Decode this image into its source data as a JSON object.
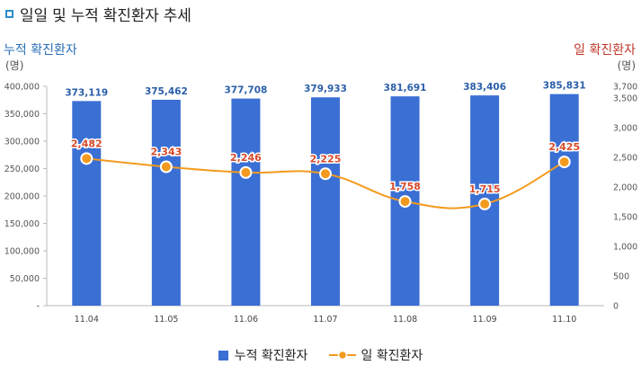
{
  "title": "일일 및 누적 확진환자 추세",
  "left_axis_title": "누적 확진환자",
  "left_axis_unit": "(명)",
  "right_axis_title": "일 확진환자",
  "right_axis_unit": "(명)",
  "colors": {
    "bar": "#3a6fd4",
    "bar_label": "#2a5fa8",
    "line": "#f39a1e",
    "line_label": "#d84a2a",
    "right_title": "#c0392b",
    "left_title": "#2a6fb5"
  },
  "chart_data": {
    "type": "bar",
    "title": "일일 및 누적 확진환자 추세",
    "categories": [
      "11.04",
      "11.05",
      "11.06",
      "11.07",
      "11.08",
      "11.09",
      "11.10"
    ],
    "series": [
      {
        "name": "누적 확진환자",
        "type": "bar",
        "axis": "left",
        "values": [
          373119,
          375462,
          377708,
          379933,
          381691,
          383406,
          385831
        ],
        "labels": [
          "373,119",
          "375,462",
          "377,708",
          "379,933",
          "381,691",
          "383,406",
          "385,831"
        ]
      },
      {
        "name": "일 확진환자",
        "type": "line",
        "axis": "right",
        "values": [
          2482,
          2343,
          2246,
          2225,
          1758,
          1715,
          2425
        ],
        "labels": [
          "2,482",
          "2,343",
          "2,246",
          "2,225",
          "1,758",
          "1,715",
          "2,425"
        ]
      }
    ],
    "left_axis": {
      "min": 0,
      "max": 400000,
      "ticks": [
        0,
        50000,
        100000,
        150000,
        200000,
        250000,
        300000,
        350000,
        400000
      ],
      "tick_labels": [
        "-",
        "50,000",
        "100,000",
        "150,000",
        "200,000",
        "250,000",
        "300,000",
        "350,000",
        "400,000"
      ]
    },
    "right_axis": {
      "min": 0,
      "max": 3700,
      "ticks": [
        0,
        500,
        1000,
        1500,
        2000,
        2500,
        3000,
        3500,
        3700
      ],
      "tick_labels": [
        "0",
        "500",
        "1,000",
        "1,500",
        "2,000",
        "2,500",
        "3,000",
        "3,500",
        "3,700"
      ]
    },
    "legend": [
      "누적 확진환자",
      "일 확진환자"
    ]
  }
}
